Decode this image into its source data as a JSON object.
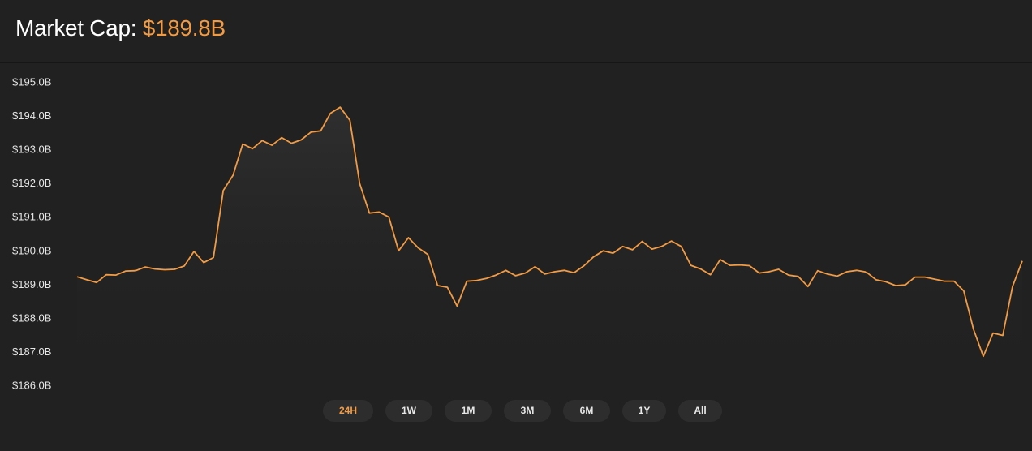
{
  "header": {
    "label": "Market Cap:",
    "value": "$189.8B"
  },
  "colors": {
    "accent": "#f29b45",
    "background": "#212121",
    "button_bg": "#2d2d2d",
    "text": "#ffffff"
  },
  "range_buttons": [
    {
      "label": "24H",
      "active": true
    },
    {
      "label": "1W",
      "active": false
    },
    {
      "label": "1M",
      "active": false
    },
    {
      "label": "3M",
      "active": false
    },
    {
      "label": "6M",
      "active": false
    },
    {
      "label": "1Y",
      "active": false
    },
    {
      "label": "All",
      "active": false
    }
  ],
  "chart_data": {
    "type": "area",
    "title": "",
    "xlabel": "",
    "ylabel": "",
    "ylim": [
      186.0,
      195.0
    ],
    "yticks": [
      "$195.0B",
      "$194.0B",
      "$193.0B",
      "$192.0B",
      "$191.0B",
      "$190.0B",
      "$189.0B",
      "$188.0B",
      "$187.0B",
      "$186.0B"
    ],
    "grid": false,
    "legend": "none",
    "series": [
      {
        "color": "#f29b45",
        "values": [
          189.22,
          189.13,
          189.05,
          189.28,
          189.27,
          189.39,
          189.4,
          189.51,
          189.45,
          189.43,
          189.44,
          189.54,
          189.97,
          189.64,
          189.79,
          191.78,
          192.23,
          193.16,
          193.02,
          193.26,
          193.12,
          193.35,
          193.18,
          193.28,
          193.51,
          193.55,
          194.07,
          194.25,
          193.86,
          191.99,
          191.11,
          191.14,
          190.99,
          189.99,
          190.38,
          190.08,
          189.88,
          188.96,
          188.91,
          188.35,
          189.09,
          189.11,
          189.17,
          189.27,
          189.41,
          189.25,
          189.33,
          189.52,
          189.3,
          189.37,
          189.41,
          189.34,
          189.54,
          189.81,
          189.99,
          189.92,
          190.12,
          190.02,
          190.27,
          190.04,
          190.12,
          190.28,
          190.12,
          189.56,
          189.45,
          189.28,
          189.73,
          189.56,
          189.57,
          189.55,
          189.33,
          189.37,
          189.44,
          189.27,
          189.23,
          188.93,
          189.4,
          189.3,
          189.24,
          189.37,
          189.41,
          189.36,
          189.13,
          189.07,
          188.96,
          188.98,
          189.21,
          189.21,
          189.15,
          189.09,
          189.09,
          188.8,
          187.66,
          186.86,
          187.55,
          187.48,
          188.93,
          189.69
        ]
      }
    ]
  }
}
